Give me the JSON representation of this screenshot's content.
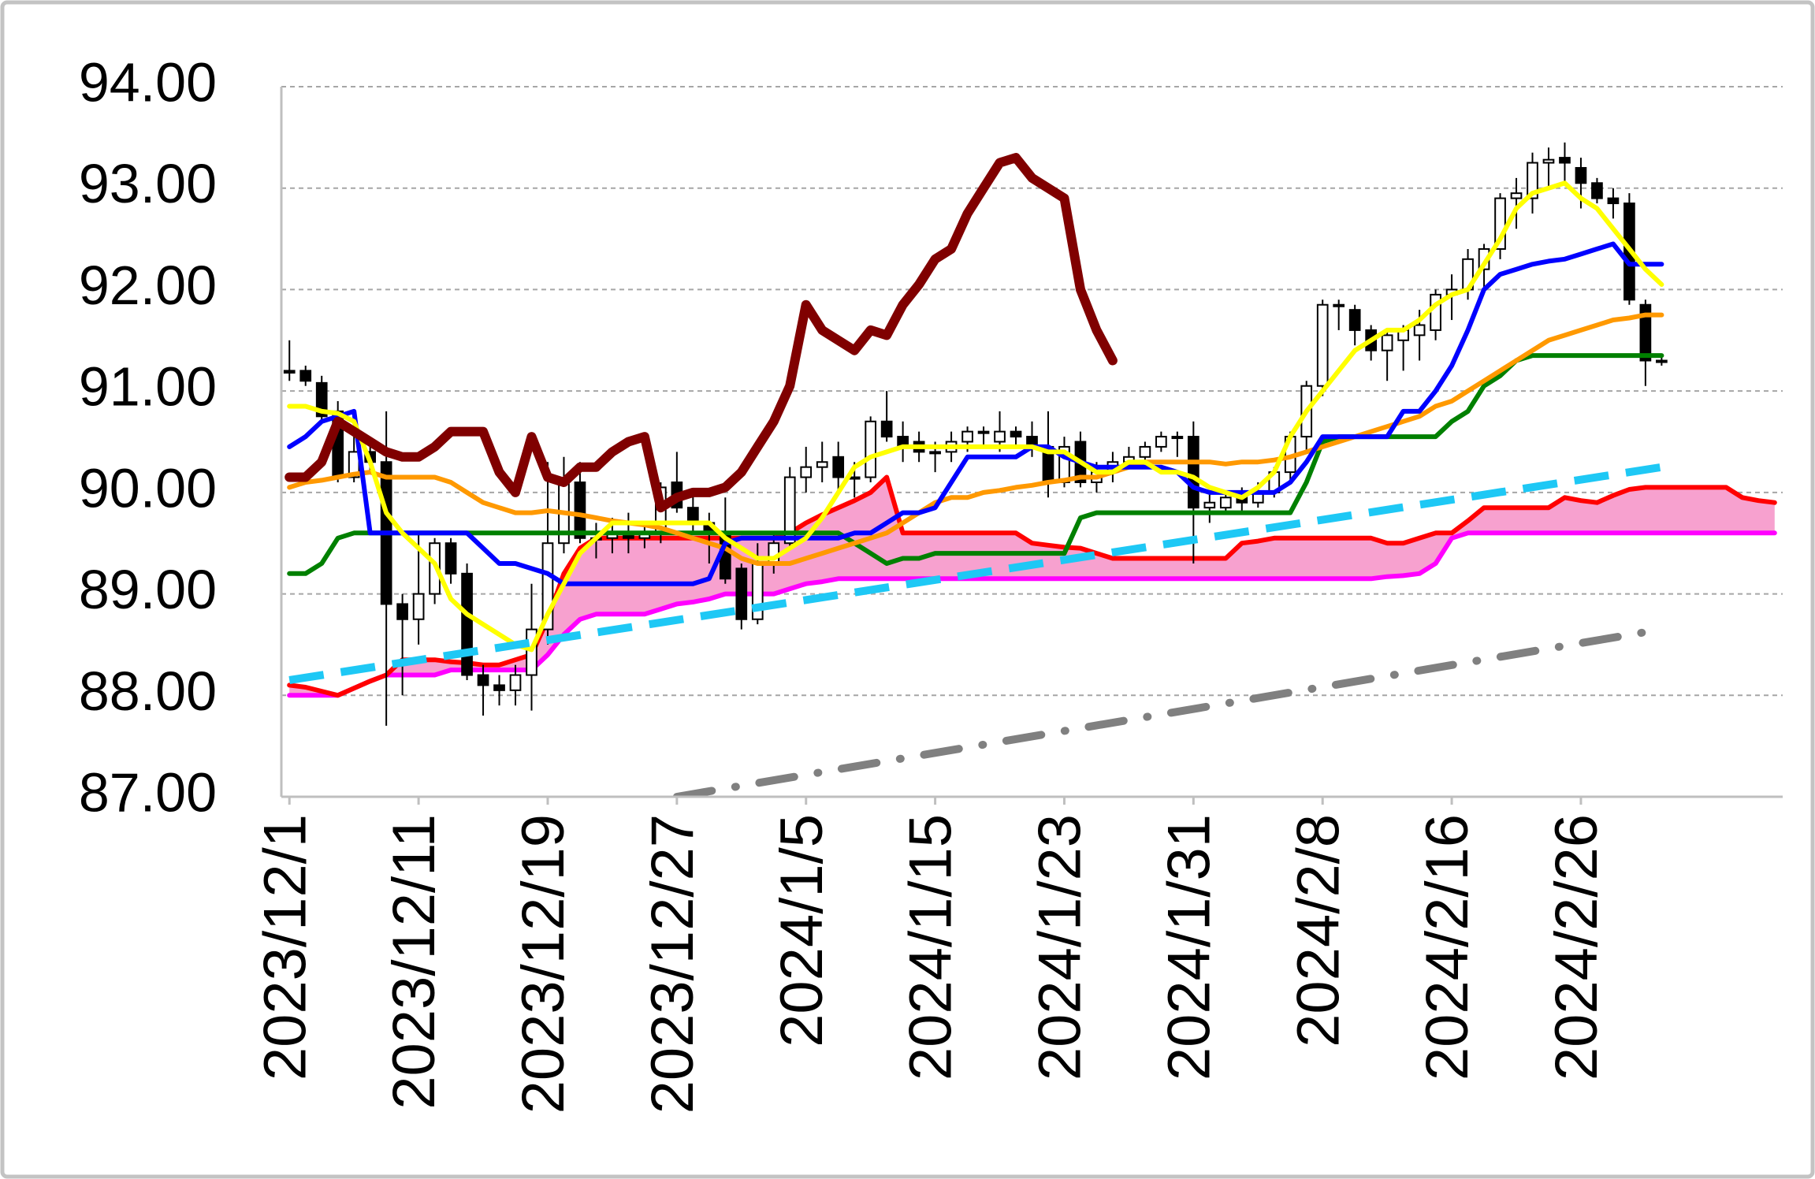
{
  "chart_data": {
    "type": "candlestick",
    "categories": [
      "2023/12/1",
      null,
      null,
      null,
      null,
      null,
      null,
      null,
      "2023/12/11",
      null,
      null,
      null,
      null,
      null,
      null,
      null,
      "2023/12/19",
      null,
      null,
      null,
      null,
      null,
      null,
      null,
      "2023/12/27",
      null,
      null,
      null,
      null,
      null,
      null,
      null,
      "2024/1/5",
      null,
      null,
      null,
      null,
      null,
      null,
      null,
      "2024/1/15",
      null,
      null,
      null,
      null,
      null,
      null,
      null,
      "2024/1/23",
      null,
      null,
      null,
      null,
      null,
      null,
      null,
      "2024/1/31",
      null,
      null,
      null,
      null,
      null,
      null,
      null,
      "2024/2/8",
      null,
      null,
      null,
      null,
      null,
      null,
      null,
      "2024/2/16",
      null,
      null,
      null,
      null,
      null,
      null,
      null,
      "2024/2/26",
      null,
      null,
      null,
      null,
      null,
      null,
      null,
      null,
      null,
      null,
      null,
      null
    ],
    "ylim": [
      87,
      94
    ],
    "yticks": [
      {
        "value": 87,
        "label": "87.00"
      },
      {
        "value": 88,
        "label": "88.00"
      },
      {
        "value": 89,
        "label": "89.00"
      },
      {
        "value": 90,
        "label": "90.00"
      },
      {
        "value": 91,
        "label": "91.00"
      },
      {
        "value": 92,
        "label": "92.00"
      },
      {
        "value": 93,
        "label": "93.00"
      },
      {
        "value": 94,
        "label": "94.00"
      }
    ],
    "grid": true,
    "candles": {
      "up_color": "#ffffff",
      "down_color": "#000000",
      "edge_color": "#000000",
      "open": [
        91.2,
        91.2,
        91.08,
        90.8,
        90.15,
        90.4,
        90.3,
        88.9,
        88.75,
        89.0,
        89.5,
        89.2,
        88.2,
        88.1,
        88.05,
        88.2,
        88.65,
        89.5,
        90.1,
        89.55,
        89.55,
        89.6,
        89.55,
        89.6,
        90.1,
        89.85,
        89.7,
        89.6,
        89.25,
        88.75,
        89.3,
        89.5,
        90.15,
        90.25,
        90.35,
        90.15,
        90.15,
        90.7,
        90.55,
        90.5,
        90.4,
        90.4,
        90.5,
        90.6,
        90.5,
        90.6,
        90.55,
        90.45,
        90.1,
        90.5,
        90.1,
        90.2,
        90.3,
        90.35,
        90.45,
        90.55,
        90.55,
        89.85,
        89.85,
        89.95,
        89.9,
        90.0,
        90.2,
        90.55,
        91.05,
        91.85,
        91.8,
        91.6,
        91.4,
        91.5,
        91.55,
        91.6,
        91.95,
        92.0,
        92.2,
        92.4,
        92.9,
        92.9,
        93.25,
        93.3,
        93.2,
        93.05,
        92.9,
        92.85,
        91.85,
        91.3,
        null,
        null,
        null,
        null,
        null,
        null,
        null
      ],
      "high": [
        91.5,
        91.25,
        91.15,
        90.9,
        90.8,
        90.5,
        90.8,
        89.0,
        89.6,
        89.55,
        89.55,
        89.3,
        88.3,
        88.2,
        88.3,
        89.1,
        90.3,
        90.35,
        90.3,
        89.7,
        89.75,
        89.8,
        89.7,
        90.1,
        90.4,
        90.0,
        89.8,
        89.95,
        89.3,
        89.5,
        89.6,
        90.25,
        90.45,
        90.5,
        90.5,
        90.3,
        90.75,
        91.0,
        90.7,
        90.6,
        90.5,
        90.6,
        90.65,
        90.65,
        90.8,
        90.65,
        90.7,
        90.8,
        90.55,
        90.6,
        90.3,
        90.4,
        90.45,
        90.5,
        90.6,
        90.6,
        90.7,
        90.0,
        90.0,
        90.05,
        90.1,
        90.25,
        90.6,
        91.1,
        91.9,
        91.9,
        91.85,
        91.65,
        91.6,
        91.65,
        91.8,
        92.0,
        92.15,
        92.4,
        92.45,
        92.95,
        93.1,
        93.35,
        93.4,
        93.45,
        93.3,
        93.1,
        93.0,
        92.95,
        91.9,
        91.35,
        null,
        null,
        null,
        null,
        null,
        null,
        null
      ],
      "low": [
        91.1,
        91.05,
        90.7,
        90.1,
        90.1,
        90.2,
        87.7,
        88.0,
        88.5,
        88.9,
        89.1,
        88.15,
        87.8,
        87.9,
        87.9,
        87.85,
        88.5,
        89.4,
        89.5,
        89.35,
        89.4,
        89.4,
        89.45,
        89.5,
        89.8,
        89.6,
        89.3,
        89.1,
        88.65,
        88.7,
        89.2,
        89.45,
        90.0,
        90.1,
        90.0,
        89.95,
        90.1,
        90.5,
        90.3,
        90.3,
        90.2,
        90.3,
        90.4,
        90.45,
        90.4,
        90.45,
        90.35,
        89.95,
        90.05,
        90.05,
        90.0,
        90.1,
        90.25,
        90.3,
        90.4,
        90.35,
        89.3,
        89.7,
        89.8,
        89.8,
        89.85,
        89.95,
        90.1,
        90.4,
        90.95,
        91.6,
        91.45,
        91.3,
        91.1,
        91.2,
        91.3,
        91.5,
        91.7,
        91.9,
        92.0,
        92.3,
        92.6,
        92.75,
        93.0,
        93.05,
        92.8,
        92.85,
        92.7,
        91.85,
        91.05,
        91.25,
        null,
        null,
        null,
        null,
        null,
        null,
        null
      ],
      "close": [
        91.18,
        91.1,
        90.75,
        90.15,
        90.4,
        90.3,
        88.9,
        88.75,
        89.0,
        89.5,
        89.2,
        88.2,
        88.1,
        88.05,
        88.2,
        88.65,
        89.5,
        90.1,
        89.55,
        89.55,
        89.6,
        89.55,
        89.6,
        90.05,
        89.85,
        89.7,
        89.6,
        89.15,
        88.75,
        89.3,
        89.5,
        90.15,
        90.25,
        90.3,
        90.15,
        90.15,
        90.7,
        90.55,
        90.45,
        90.4,
        90.4,
        90.5,
        90.6,
        90.6,
        90.6,
        90.55,
        90.45,
        90.1,
        90.45,
        90.1,
        90.2,
        90.3,
        90.35,
        90.45,
        90.55,
        90.55,
        89.85,
        89.9,
        89.95,
        89.9,
        90.0,
        90.2,
        90.55,
        91.05,
        91.85,
        91.85,
        91.6,
        91.4,
        91.55,
        91.6,
        91.65,
        91.95,
        92.0,
        92.3,
        92.4,
        92.9,
        92.95,
        93.25,
        93.28,
        93.25,
        93.05,
        92.9,
        92.85,
        91.9,
        91.3,
        91.3,
        null,
        null,
        null,
        null,
        null,
        null,
        null
      ]
    },
    "series": [
      {
        "color": "#ff00ff",
        "linewidth": 6,
        "fill": "#f7a1cf",
        "values": [
          88.0,
          88.0,
          88.0,
          88.0,
          88.07,
          88.14,
          88.2,
          88.2,
          88.2,
          88.2,
          88.25,
          88.25,
          88.25,
          88.25,
          88.25,
          88.25,
          88.4,
          88.6,
          88.75,
          88.8,
          88.8,
          88.8,
          88.8,
          88.85,
          88.9,
          88.92,
          88.95,
          89.0,
          89.0,
          89.0,
          89.0,
          89.05,
          89.1,
          89.12,
          89.15,
          89.15,
          89.15,
          89.15,
          89.15,
          89.15,
          89.15,
          89.15,
          89.15,
          89.15,
          89.15,
          89.15,
          89.15,
          89.15,
          89.15,
          89.15,
          89.15,
          89.15,
          89.15,
          89.15,
          89.15,
          89.15,
          89.15,
          89.15,
          89.15,
          89.15,
          89.15,
          89.15,
          89.15,
          89.15,
          89.15,
          89.15,
          89.15,
          89.15,
          89.17,
          89.18,
          89.2,
          89.3,
          89.55,
          89.6,
          89.6,
          89.6,
          89.6,
          89.6,
          89.6,
          89.6,
          89.6,
          89.6,
          89.6,
          89.6,
          89.6,
          89.6,
          89.6,
          89.6,
          89.6,
          89.6,
          89.6,
          89.6,
          89.6
        ]
      },
      {
        "color": "#ff0000",
        "linewidth": 6,
        "fill": "#f7a1cf",
        "values": [
          88.1,
          88.08,
          88.04,
          88.0,
          88.07,
          88.14,
          88.2,
          88.35,
          88.35,
          88.35,
          88.33,
          88.32,
          88.3,
          88.3,
          88.35,
          88.4,
          88.75,
          89.2,
          89.45,
          89.55,
          89.55,
          89.55,
          89.55,
          89.55,
          89.55,
          89.55,
          89.55,
          89.55,
          89.55,
          89.55,
          89.55,
          89.6,
          89.7,
          89.78,
          89.85,
          89.92,
          90.0,
          90.15,
          89.6,
          89.6,
          89.6,
          89.6,
          89.6,
          89.6,
          89.6,
          89.6,
          89.5,
          89.48,
          89.46,
          89.45,
          89.4,
          89.35,
          89.35,
          89.35,
          89.35,
          89.35,
          89.35,
          89.35,
          89.35,
          89.5,
          89.52,
          89.55,
          89.55,
          89.55,
          89.55,
          89.55,
          89.55,
          89.55,
          89.5,
          89.5,
          89.55,
          89.6,
          89.6,
          89.72,
          89.85,
          89.85,
          89.85,
          89.85,
          89.85,
          89.95,
          89.92,
          89.9,
          89.97,
          90.03,
          90.05,
          90.05,
          90.05,
          90.05,
          90.05,
          90.05,
          89.95,
          89.92,
          89.9
        ]
      },
      {
        "color": "#808080",
        "linewidth": 10,
        "linestyle": "dashdot",
        "x": [
          24,
          85
        ],
        "values": [
          87.0,
          88.65
        ]
      },
      {
        "color": "#008000",
        "linewidth": 6,
        "values": [
          89.2,
          89.2,
          89.3,
          89.55,
          89.6,
          89.6,
          89.6,
          89.6,
          89.6,
          89.6,
          89.6,
          89.6,
          89.6,
          89.6,
          89.6,
          89.6,
          89.6,
          89.6,
          89.6,
          89.6,
          89.6,
          89.6,
          89.6,
          89.6,
          89.6,
          89.6,
          89.6,
          89.6,
          89.6,
          89.6,
          89.6,
          89.6,
          89.6,
          89.6,
          89.6,
          89.5,
          89.4,
          89.3,
          89.35,
          89.35,
          89.4,
          89.4,
          89.4,
          89.4,
          89.4,
          89.4,
          89.4,
          89.4,
          89.4,
          89.75,
          89.8,
          89.8,
          89.8,
          89.8,
          89.8,
          89.8,
          89.8,
          89.8,
          89.8,
          89.8,
          89.8,
          89.8,
          89.8,
          90.1,
          90.5,
          90.55,
          90.55,
          90.55,
          90.55,
          90.55,
          90.55,
          90.55,
          90.7,
          90.8,
          91.05,
          91.15,
          91.3,
          91.35,
          91.35,
          91.35,
          91.35,
          91.35,
          91.35,
          91.35,
          91.35,
          91.35,
          null,
          null,
          null,
          null,
          null,
          null,
          null
        ]
      },
      {
        "color": "#ff9900",
        "linewidth": 6,
        "values": [
          90.05,
          90.1,
          90.12,
          90.15,
          90.18,
          90.2,
          90.15,
          90.15,
          90.15,
          90.15,
          90.1,
          90.0,
          89.9,
          89.85,
          89.8,
          89.8,
          89.82,
          89.8,
          89.78,
          89.75,
          89.72,
          89.7,
          89.68,
          89.65,
          89.6,
          89.55,
          89.5,
          89.45,
          89.35,
          89.3,
          89.3,
          89.3,
          89.35,
          89.4,
          89.45,
          89.5,
          89.55,
          89.6,
          89.7,
          89.8,
          89.9,
          89.95,
          89.95,
          90.0,
          90.02,
          90.05,
          90.07,
          90.1,
          90.12,
          90.15,
          90.15,
          90.2,
          90.25,
          90.3,
          90.3,
          90.3,
          90.3,
          90.3,
          90.28,
          90.3,
          90.3,
          90.32,
          90.35,
          90.4,
          90.45,
          90.5,
          90.55,
          90.6,
          90.65,
          90.7,
          90.75,
          90.85,
          90.9,
          91.0,
          91.1,
          91.2,
          91.3,
          91.4,
          91.5,
          91.55,
          91.6,
          91.65,
          91.7,
          91.72,
          91.75,
          91.75,
          null,
          null,
          null,
          null,
          null,
          null,
          null
        ]
      },
      {
        "color": "#0000ff",
        "linewidth": 6,
        "values": [
          90.45,
          90.55,
          90.7,
          90.75,
          90.8,
          89.6,
          89.6,
          89.6,
          89.6,
          89.6,
          89.6,
          89.6,
          89.45,
          89.3,
          89.3,
          89.25,
          89.2,
          89.1,
          89.1,
          89.1,
          89.1,
          89.1,
          89.1,
          89.1,
          89.1,
          89.1,
          89.15,
          89.5,
          89.55,
          89.55,
          89.55,
          89.55,
          89.55,
          89.55,
          89.55,
          89.6,
          89.6,
          89.7,
          89.8,
          89.8,
          89.85,
          90.1,
          90.35,
          90.35,
          90.35,
          90.35,
          90.45,
          90.45,
          90.35,
          90.3,
          90.25,
          90.25,
          90.25,
          90.25,
          90.25,
          90.2,
          90.05,
          90.0,
          90.0,
          90.0,
          90.0,
          90.0,
          90.1,
          90.3,
          90.55,
          90.55,
          90.55,
          90.55,
          90.55,
          90.8,
          90.8,
          91.0,
          91.25,
          91.6,
          92.0,
          92.15,
          92.2,
          92.25,
          92.28,
          92.3,
          92.35,
          92.4,
          92.45,
          92.25,
          92.25,
          92.25,
          null,
          null,
          null,
          null,
          null,
          null,
          null
        ]
      },
      {
        "color": "#ffff00",
        "linewidth": 6,
        "values": [
          90.85,
          90.85,
          90.8,
          90.78,
          90.7,
          90.3,
          89.8,
          89.6,
          89.45,
          89.3,
          88.95,
          88.8,
          88.7,
          88.6,
          88.5,
          88.45,
          88.8,
          89.1,
          89.4,
          89.55,
          89.7,
          89.7,
          89.7,
          89.7,
          89.7,
          89.7,
          89.7,
          89.55,
          89.45,
          89.35,
          89.35,
          89.45,
          89.55,
          89.75,
          90.0,
          90.25,
          90.35,
          90.4,
          90.45,
          90.45,
          90.45,
          90.45,
          90.45,
          90.45,
          90.45,
          90.45,
          90.45,
          90.4,
          90.4,
          90.3,
          90.2,
          90.2,
          90.3,
          90.3,
          90.2,
          90.2,
          90.15,
          90.05,
          90.0,
          89.95,
          90.05,
          90.2,
          90.55,
          90.8,
          91.0,
          91.2,
          91.4,
          91.5,
          91.6,
          91.6,
          91.7,
          91.85,
          91.95,
          92.0,
          92.25,
          92.5,
          92.8,
          92.95,
          93.0,
          93.05,
          92.9,
          92.8,
          92.6,
          92.4,
          92.2,
          92.05,
          null,
          null,
          null,
          null,
          null,
          null,
          null
        ]
      },
      {
        "color": "#800000",
        "linewidth": 12,
        "values": [
          90.15,
          90.15,
          90.3,
          90.7,
          90.6,
          90.5,
          90.4,
          90.35,
          90.35,
          90.45,
          90.6,
          90.6,
          90.6,
          90.2,
          90.0,
          90.55,
          90.15,
          90.1,
          90.25,
          90.25,
          90.4,
          90.5,
          90.55,
          89.85,
          89.95,
          90.0,
          90.0,
          90.05,
          90.2,
          90.45,
          90.7,
          91.05,
          91.85,
          91.6,
          91.5,
          91.4,
          91.6,
          91.55,
          91.85,
          92.05,
          92.3,
          92.4,
          92.75,
          93.0,
          93.25,
          93.3,
          93.1,
          93.0,
          92.9,
          92.0,
          91.6,
          91.3,
          null,
          null,
          null,
          null,
          null,
          null,
          null,
          null,
          null,
          null,
          null,
          null,
          null,
          null,
          null,
          null,
          null,
          null,
          null,
          null,
          null,
          null,
          null,
          null,
          null,
          null,
          null,
          null,
          null,
          null,
          null,
          null,
          null,
          null,
          null,
          null,
          null,
          null,
          null,
          null,
          null
        ]
      },
      {
        "color": "#1ec8f5",
        "linewidth": 10,
        "linestyle": "dashed",
        "x": [
          0,
          85
        ],
        "values": [
          88.15,
          90.25
        ]
      }
    ]
  }
}
